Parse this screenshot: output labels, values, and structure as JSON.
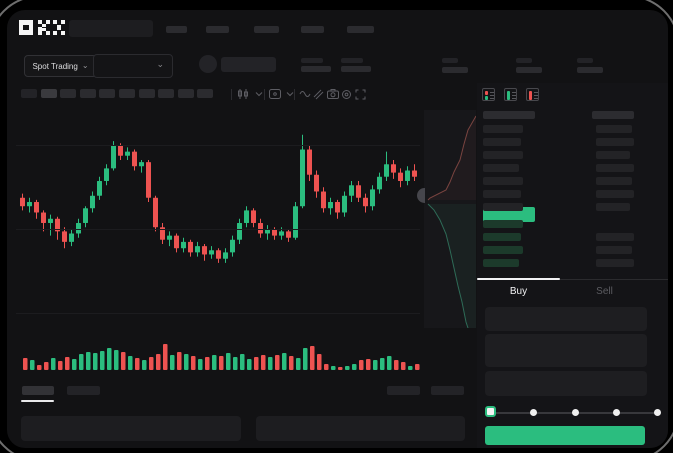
{
  "app_title": "OKX Spot Trading",
  "header": {
    "logo_text": "OKX",
    "nav_placeholder_count": 5
  },
  "subheader": {
    "market_selector_label": "Spot Trading",
    "chevron": "⌄",
    "mini_stat_pairs": 2,
    "stat_pairs": 3
  },
  "toolbar": {
    "timeframe_button_count": 10,
    "active_index": 1,
    "icons": [
      "chart-type-icon",
      "chevron-down-icon",
      "indicator-badge-icon",
      "chevron-down-icon",
      "wave-indicator-icon",
      "compare-icon",
      "camera-icon",
      "settings-icon",
      "fullscreen-icon"
    ]
  },
  "colors": {
    "up": "#2bbd7f",
    "down": "#ee5351",
    "bid_row": "#1c3a2b",
    "ask_row_bar": "#232326",
    "app_bg": "#121214",
    "panel_bg": "#1d1d20",
    "gridline": "#1c1c1f",
    "text": "#f2f2f4",
    "text_dim": "#5c5c61"
  },
  "chart_data": {
    "type": "candlestick",
    "title": "",
    "unit": "relative price 0-100 (no visible axis labels)",
    "gridlines_price": [
      87,
      47,
      7
    ],
    "up_color": "#2bbd7f",
    "down_color": "#ee5351",
    "candles_ohlc": [
      [
        62,
        64,
        56,
        58
      ],
      [
        58,
        62,
        55,
        60
      ],
      [
        60,
        61,
        52,
        55
      ],
      [
        55,
        56,
        46,
        50
      ],
      [
        50,
        54,
        44,
        52
      ],
      [
        52,
        53,
        42,
        46
      ],
      [
        46,
        48,
        38,
        41
      ],
      [
        41,
        47,
        39,
        45
      ],
      [
        45,
        52,
        43,
        50
      ],
      [
        50,
        58,
        48,
        57
      ],
      [
        57,
        65,
        55,
        63
      ],
      [
        63,
        72,
        61,
        70
      ],
      [
        70,
        78,
        68,
        76
      ],
      [
        76,
        89,
        75,
        87
      ],
      [
        87,
        88,
        80,
        82
      ],
      [
        82,
        86,
        80,
        84
      ],
      [
        84,
        85,
        75,
        77
      ],
      [
        77,
        80,
        74,
        79
      ],
      [
        79,
        80,
        60,
        62
      ],
      [
        62,
        63,
        46,
        48
      ],
      [
        48,
        50,
        40,
        42
      ],
      [
        42,
        46,
        39,
        44
      ],
      [
        44,
        45,
        36,
        38
      ],
      [
        38,
        43,
        36,
        41
      ],
      [
        41,
        42,
        34,
        36
      ],
      [
        36,
        41,
        34,
        39
      ],
      [
        39,
        40,
        32,
        35
      ],
      [
        35,
        39,
        33,
        37
      ],
      [
        37,
        38,
        31,
        33
      ],
      [
        33,
        38,
        31,
        36
      ],
      [
        36,
        44,
        34,
        42
      ],
      [
        42,
        52,
        40,
        50
      ],
      [
        50,
        58,
        48,
        56
      ],
      [
        56,
        57,
        48,
        50
      ],
      [
        50,
        52,
        43,
        45
      ],
      [
        45,
        49,
        42,
        47
      ],
      [
        47,
        48,
        42,
        44
      ],
      [
        44,
        48,
        42,
        46
      ],
      [
        46,
        47,
        41,
        43
      ],
      [
        43,
        60,
        42,
        58
      ],
      [
        58,
        92,
        57,
        85
      ],
      [
        85,
        87,
        70,
        73
      ],
      [
        73,
        75,
        62,
        65
      ],
      [
        65,
        67,
        55,
        57
      ],
      [
        57,
        62,
        54,
        60
      ],
      [
        60,
        61,
        52,
        55
      ],
      [
        55,
        65,
        53,
        63
      ],
      [
        63,
        70,
        60,
        68
      ],
      [
        68,
        70,
        60,
        62
      ],
      [
        62,
        64,
        55,
        58
      ],
      [
        58,
        68,
        56,
        66
      ],
      [
        66,
        74,
        64,
        72
      ],
      [
        72,
        84,
        70,
        78
      ],
      [
        78,
        80,
        71,
        74
      ],
      [
        74,
        76,
        67,
        70
      ],
      [
        70,
        77,
        68,
        75
      ],
      [
        75,
        78,
        70,
        72
      ]
    ],
    "volume": [
      12,
      10,
      5,
      8,
      12,
      9,
      13,
      11,
      16,
      18,
      17,
      19,
      22,
      20,
      18,
      14,
      12,
      10,
      13,
      16,
      26,
      15,
      18,
      16,
      14,
      11,
      13,
      15,
      14,
      17,
      13,
      16,
      11,
      13,
      15,
      13,
      15,
      17,
      14,
      12,
      22,
      24,
      16,
      6,
      4,
      3,
      4,
      6,
      10,
      11,
      10,
      12,
      14,
      10,
      8,
      4,
      6
    ],
    "depth": {
      "asks_curve": [
        [
          52,
          6
        ],
        [
          44,
          20
        ],
        [
          40,
          34
        ],
        [
          36,
          50
        ],
        [
          30,
          62
        ],
        [
          26,
          72
        ],
        [
          22,
          80
        ],
        [
          6,
          88
        ],
        [
          4,
          90
        ]
      ],
      "bids_curve": [
        [
          4,
          94
        ],
        [
          10,
          100
        ],
        [
          16,
          110
        ],
        [
          22,
          124
        ],
        [
          26,
          140
        ],
        [
          30,
          158
        ],
        [
          34,
          176
        ],
        [
          38,
          192
        ],
        [
          42,
          212
        ],
        [
          44,
          218
        ]
      ]
    }
  },
  "orderbook": {
    "layout_icons": [
      "orderbook-both-icon",
      "orderbook-bids-only-icon",
      "orderbook-asks-only-icon"
    ],
    "ask_rows": [
      {
        "l": 40,
        "r": 36
      },
      {
        "l": 38,
        "r": 38
      },
      {
        "l": 40,
        "r": 34
      },
      {
        "l": 36,
        "r": 38
      },
      {
        "l": 40,
        "r": 36
      },
      {
        "l": 38,
        "r": 38
      },
      {
        "l": 40,
        "r": 34
      }
    ],
    "bid_rows": [
      {
        "l": 40,
        "r": 0
      },
      {
        "l": 38,
        "r": 38
      },
      {
        "l": 40,
        "r": 36
      },
      {
        "l": 36,
        "r": 38
      }
    ]
  },
  "trade": {
    "buy_label": "Buy",
    "sell_label": "Sell",
    "active_tab": "Buy",
    "field_count": 3,
    "slider_dots": 5,
    "slider_active_index": 0
  }
}
